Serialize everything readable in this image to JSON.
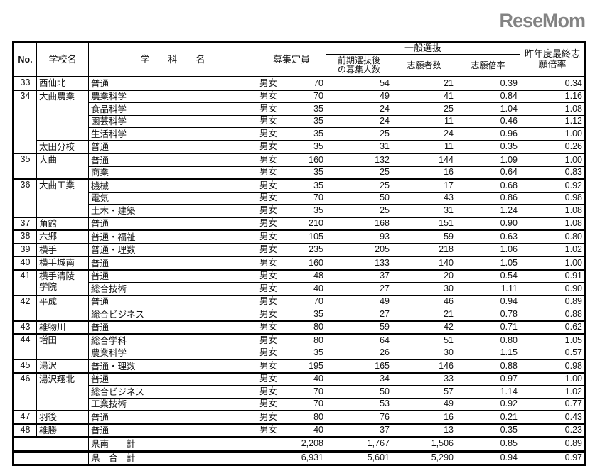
{
  "header": {
    "no": "No.",
    "school": "学校名",
    "subject": "学　　科　　名",
    "capacity": "募集定員",
    "general": "一般選抜",
    "after_early": "前期選抜後の募集人数",
    "applicants": "志願者数",
    "ratio": "志願倍率",
    "last_year": "昨年度最終志願倍率"
  },
  "schools": [
    {
      "no": "33",
      "campuses": [
        {
          "name": "西仙北",
          "rows": [
            [
              "普通",
              "男女",
              "70",
              "54",
              "21",
              "0.39",
              "0.34"
            ]
          ]
        }
      ]
    },
    {
      "no": "34",
      "campuses": [
        {
          "name": "大曲農業",
          "rows": [
            [
              "農業科学",
              "男女",
              "70",
              "49",
              "41",
              "0.84",
              "1.16"
            ],
            [
              "食品科学",
              "男女",
              "35",
              "24",
              "25",
              "1.04",
              "1.08"
            ],
            [
              "園芸科学",
              "男女",
              "35",
              "24",
              "11",
              "0.46",
              "1.12"
            ],
            [
              "生活科学",
              "男女",
              "35",
              "25",
              "24",
              "0.96",
              "1.00"
            ]
          ]
        },
        {
          "name": "太田分校",
          "rows": [
            [
              "普通",
              "男女",
              "35",
              "31",
              "11",
              "0.35",
              "0.26"
            ]
          ]
        }
      ]
    },
    {
      "no": "35",
      "campuses": [
        {
          "name": "大曲",
          "rows": [
            [
              "普通",
              "男女",
              "160",
              "132",
              "144",
              "1.09",
              "1.00"
            ],
            [
              "商業",
              "男女",
              "35",
              "25",
              "16",
              "0.64",
              "0.83"
            ]
          ]
        }
      ]
    },
    {
      "no": "36",
      "campuses": [
        {
          "name": "大曲工業",
          "rows": [
            [
              "機械",
              "男女",
              "35",
              "25",
              "17",
              "0.68",
              "0.92"
            ],
            [
              "電気",
              "男女",
              "70",
              "50",
              "43",
              "0.86",
              "0.98"
            ],
            [
              "土木・建築",
              "男女",
              "35",
              "25",
              "31",
              "1.24",
              "1.08"
            ]
          ]
        }
      ]
    },
    {
      "no": "37",
      "campuses": [
        {
          "name": "角館",
          "rows": [
            [
              "普通",
              "男女",
              "210",
              "168",
              "151",
              "0.90",
              "1.08"
            ]
          ]
        }
      ]
    },
    {
      "no": "38",
      "campuses": [
        {
          "name": "六郷",
          "rows": [
            [
              "普通・福祉",
              "男女",
              "105",
              "93",
              "59",
              "0.63",
              "0.80"
            ]
          ]
        }
      ]
    },
    {
      "no": "39",
      "campuses": [
        {
          "name": "横手",
          "rows": [
            [
              "普通・理数",
              "男女",
              "235",
              "205",
              "218",
              "1.06",
              "1.02"
            ]
          ]
        }
      ]
    },
    {
      "no": "40",
      "campuses": [
        {
          "name": "横手城南",
          "rows": [
            [
              "普通",
              "男女",
              "160",
              "133",
              "140",
              "1.05",
              "1.00"
            ]
          ]
        }
      ]
    },
    {
      "no": "41",
      "campuses": [
        {
          "name": "横手清陵学院",
          "rows": [
            [
              "普通",
              "男女",
              "48",
              "37",
              "20",
              "0.54",
              "0.91"
            ],
            [
              "総合技術",
              "男女",
              "40",
              "27",
              "30",
              "1.11",
              "0.90"
            ]
          ]
        }
      ]
    },
    {
      "no": "42",
      "campuses": [
        {
          "name": "平成",
          "rows": [
            [
              "普通",
              "男女",
              "70",
              "49",
              "46",
              "0.94",
              "0.89"
            ],
            [
              "総合ビジネス",
              "男女",
              "35",
              "27",
              "21",
              "0.78",
              "0.88"
            ]
          ]
        }
      ]
    },
    {
      "no": "43",
      "campuses": [
        {
          "name": "雄物川",
          "rows": [
            [
              "普通",
              "男女",
              "80",
              "59",
              "42",
              "0.71",
              "0.62"
            ]
          ]
        }
      ]
    },
    {
      "no": "44",
      "campuses": [
        {
          "name": "増田",
          "rows": [
            [
              "総合学科",
              "男女",
              "80",
              "64",
              "51",
              "0.80",
              "1.05"
            ],
            [
              "農業科学",
              "男女",
              "35",
              "26",
              "30",
              "1.15",
              "0.57"
            ]
          ]
        }
      ]
    },
    {
      "no": "45",
      "campuses": [
        {
          "name": "湯沢",
          "rows": [
            [
              "普通・理数",
              "男女",
              "195",
              "165",
              "146",
              "0.88",
              "0.98"
            ]
          ]
        }
      ]
    },
    {
      "no": "46",
      "campuses": [
        {
          "name": "湯沢翔北",
          "rows": [
            [
              "普通",
              "男女",
              "40",
              "34",
              "33",
              "0.97",
              "1.00"
            ],
            [
              "総合ビジネス",
              "男女",
              "70",
              "50",
              "57",
              "1.14",
              "1.02"
            ],
            [
              "工業技術",
              "男女",
              "70",
              "53",
              "49",
              "0.92",
              "0.77"
            ]
          ]
        }
      ]
    },
    {
      "no": "47",
      "campuses": [
        {
          "name": "羽後",
          "rows": [
            [
              "普通",
              "男女",
              "80",
              "76",
              "16",
              "0.21",
              "0.43"
            ]
          ]
        }
      ]
    },
    {
      "no": "48",
      "campuses": [
        {
          "name": "雄勝",
          "rows": [
            [
              "普通",
              "男女",
              "40",
              "37",
              "13",
              "0.35",
              "0.23"
            ]
          ]
        }
      ]
    }
  ],
  "totals": [
    {
      "label": "県南　　計",
      "values": [
        "2,208",
        "1,767",
        "1,506",
        "0.85",
        "0.89"
      ]
    },
    {
      "label": "県　合　計",
      "values": [
        "6,931",
        "5,601",
        "5,290",
        "0.94",
        "0.97"
      ]
    }
  ],
  "watermark": "ReseMom"
}
